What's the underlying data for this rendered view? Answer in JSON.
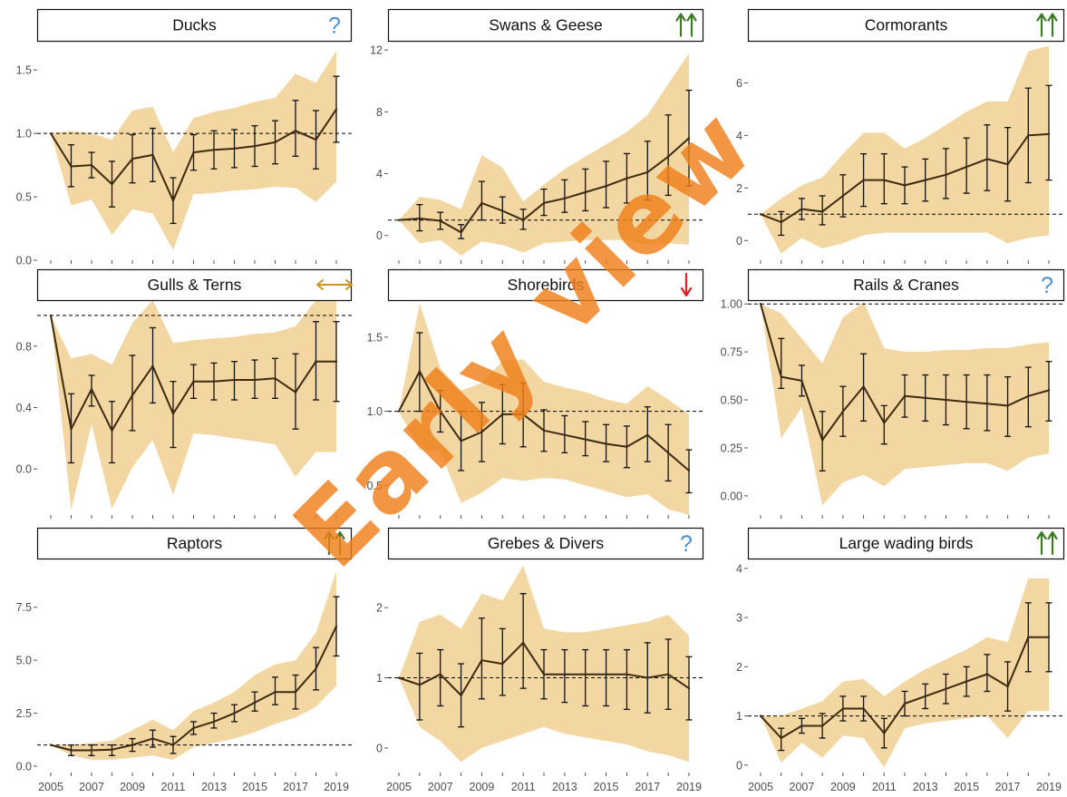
{
  "watermark_text": "Early view",
  "colors": {
    "band": "#f3d7a3",
    "line": "#3d2a10",
    "errorbar": "#111111",
    "refline": "#000000",
    "green_arrow": "#3c7a26",
    "red_arrow": "#e02020",
    "gold_arrow": "#c99624",
    "question": "#4a90d0",
    "axis_text": "#4d4d4d"
  },
  "x_tick_labels": [
    "2005",
    "2007",
    "2009",
    "2011",
    "2013",
    "2015",
    "2017",
    "2019"
  ],
  "chart_data": [
    {
      "type": "line",
      "title": "Ducks",
      "trend_icon": "question-mark",
      "x": [
        2005,
        2006,
        2007,
        2008,
        2009,
        2010,
        2011,
        2012,
        2013,
        2014,
        2015,
        2016,
        2017,
        2018,
        2019
      ],
      "y": [
        1.0,
        0.74,
        0.75,
        0.6,
        0.8,
        0.83,
        0.47,
        0.85,
        0.87,
        0.88,
        0.9,
        0.93,
        1.02,
        0.95,
        1.19
      ],
      "err_lo": [
        null,
        0.58,
        0.65,
        0.42,
        0.61,
        0.62,
        0.29,
        0.71,
        0.72,
        0.73,
        0.74,
        0.76,
        0.82,
        0.72,
        0.93
      ],
      "err_hi": [
        null,
        0.91,
        0.85,
        0.78,
        0.99,
        1.04,
        0.65,
        0.99,
        1.02,
        1.03,
        1.06,
        1.1,
        1.26,
        1.18,
        1.45
      ],
      "band_lo": [
        1.0,
        0.43,
        0.48,
        0.2,
        0.4,
        0.37,
        0.08,
        0.52,
        0.53,
        0.55,
        0.56,
        0.58,
        0.57,
        0.46,
        0.62
      ],
      "band_hi": [
        1.0,
        1.02,
        1.0,
        0.95,
        1.18,
        1.21,
        0.85,
        1.12,
        1.17,
        1.2,
        1.25,
        1.28,
        1.47,
        1.4,
        1.65
      ],
      "ref": 1.0,
      "ylim": [
        0,
        1.73
      ],
      "yticks": [
        0.0,
        0.5,
        1.0,
        1.5
      ],
      "ytick_labels": [
        "0.0",
        "0.5",
        "1.0",
        "1.5"
      ]
    },
    {
      "type": "line",
      "title": "Swans & Geese",
      "trend_icon": "double-up-arrow",
      "x": [
        2005,
        2006,
        2007,
        2008,
        2009,
        2010,
        2011,
        2012,
        2013,
        2014,
        2015,
        2016,
        2017,
        2018,
        2019
      ],
      "y": [
        1.0,
        1.1,
        0.95,
        0.2,
        2.1,
        1.6,
        1.0,
        2.1,
        2.4,
        2.8,
        3.2,
        3.7,
        4.1,
        5.1,
        6.3
      ],
      "err_lo": [
        null,
        0.3,
        0.4,
        -0.2,
        1.0,
        0.8,
        0.4,
        1.3,
        1.5,
        1.6,
        1.8,
        2.1,
        2.3,
        2.6,
        3.2
      ],
      "err_hi": [
        null,
        2.0,
        1.5,
        0.7,
        3.5,
        2.5,
        1.7,
        3.0,
        3.6,
        4.3,
        4.8,
        5.3,
        6.1,
        7.8,
        9.4
      ],
      "band_lo": [
        1.0,
        -0.5,
        -0.3,
        -1.3,
        -0.4,
        -0.6,
        -1.1,
        -0.5,
        -0.4,
        -0.3,
        -0.3,
        -0.3,
        -0.6,
        -0.5,
        -0.6
      ],
      "band_hi": [
        1.0,
        2.5,
        2.3,
        1.7,
        5.2,
        4.4,
        2.2,
        3.3,
        4.3,
        5.1,
        5.9,
        6.7,
        7.8,
        9.8,
        11.8
      ],
      "ref": 1.0,
      "ylim": [
        -1.6,
        12.6
      ],
      "yticks": [
        0,
        4,
        8,
        12
      ],
      "ytick_labels": [
        "0",
        "4",
        "8",
        "12"
      ]
    },
    {
      "type": "line",
      "title": "Cormorants",
      "trend_icon": "double-up-arrow",
      "x": [
        2005,
        2006,
        2007,
        2008,
        2009,
        2010,
        2011,
        2012,
        2013,
        2014,
        2015,
        2016,
        2017,
        2018,
        2019
      ],
      "y": [
        1.0,
        0.7,
        1.2,
        1.1,
        1.7,
        2.3,
        2.3,
        2.1,
        2.3,
        2.5,
        2.8,
        3.1,
        2.9,
        4.0,
        4.05
      ],
      "err_lo": [
        null,
        0.2,
        0.8,
        0.6,
        0.9,
        1.3,
        1.4,
        1.4,
        1.5,
        1.6,
        1.8,
        1.9,
        1.5,
        2.2,
        2.3
      ],
      "err_hi": [
        null,
        1.1,
        1.6,
        1.7,
        2.5,
        3.3,
        3.3,
        2.8,
        3.1,
        3.5,
        3.9,
        4.4,
        4.3,
        5.8,
        5.9
      ],
      "band_lo": [
        1.0,
        -0.5,
        0.1,
        -0.3,
        -0.1,
        0.2,
        0.3,
        0.3,
        0.3,
        0.3,
        0.3,
        0.3,
        -0.1,
        0.1,
        0.2
      ],
      "band_hi": [
        1.0,
        1.6,
        2.1,
        2.4,
        3.3,
        4.1,
        4.1,
        3.5,
        3.9,
        4.4,
        4.9,
        5.3,
        5.3,
        7.2,
        7.4
      ],
      "ref": 1.0,
      "ylim": [
        -0.75,
        7.6
      ],
      "yticks": [
        0,
        2,
        4,
        6
      ],
      "ytick_labels": [
        "0",
        "2",
        "4",
        "6"
      ]
    },
    {
      "type": "line",
      "title": "Gulls & Terns",
      "trend_icon": "left-right-arrow",
      "x": [
        2005,
        2006,
        2007,
        2008,
        2009,
        2010,
        2011,
        2012,
        2013,
        2014,
        2015,
        2016,
        2017,
        2018,
        2019
      ],
      "y": [
        1.0,
        0.26,
        0.52,
        0.25,
        0.48,
        0.67,
        0.36,
        0.57,
        0.57,
        0.58,
        0.58,
        0.59,
        0.5,
        0.7,
        0.7
      ],
      "err_lo": [
        null,
        0.04,
        0.41,
        0.04,
        0.25,
        0.43,
        0.14,
        0.46,
        0.45,
        0.45,
        0.46,
        0.46,
        0.26,
        0.45,
        0.44
      ],
      "err_hi": [
        null,
        0.49,
        0.61,
        0.44,
        0.74,
        0.92,
        0.57,
        0.68,
        0.69,
        0.7,
        0.71,
        0.72,
        0.75,
        0.96,
        0.96
      ],
      "band_lo": [
        1.0,
        -0.27,
        0.29,
        -0.26,
        0.01,
        0.19,
        -0.17,
        0.23,
        0.22,
        0.2,
        0.18,
        0.16,
        -0.05,
        0.11,
        0.11
      ],
      "band_hi": [
        1.0,
        0.72,
        0.75,
        0.68,
        0.95,
        1.1,
        0.82,
        0.84,
        0.85,
        0.86,
        0.88,
        0.89,
        0.93,
        1.1,
        1.1
      ],
      "ref": 1.0,
      "ylim": [
        -0.3,
        1.1
      ],
      "yticks": [
        0.0,
        0.4,
        0.8
      ],
      "ytick_labels": [
        "0.0",
        "0.4",
        "0.8"
      ]
    },
    {
      "type": "line",
      "title": "Shorebirds",
      "trend_icon": "down-arrow",
      "x": [
        2005,
        2006,
        2007,
        2008,
        2009,
        2010,
        2011,
        2012,
        2013,
        2014,
        2015,
        2016,
        2017,
        2018,
        2019
      ],
      "y": [
        1.0,
        1.27,
        1.0,
        0.8,
        0.86,
        0.98,
        0.98,
        0.87,
        0.84,
        0.81,
        0.78,
        0.76,
        0.84,
        0.72,
        0.6
      ],
      "err_lo": [
        null,
        1.0,
        0.86,
        0.6,
        0.66,
        0.78,
        0.76,
        0.73,
        0.72,
        0.7,
        0.66,
        0.62,
        0.66,
        0.53,
        0.45
      ],
      "err_hi": [
        null,
        1.53,
        1.14,
        1.0,
        1.06,
        1.18,
        1.19,
        1.01,
        0.97,
        0.93,
        0.91,
        0.9,
        1.03,
        0.91,
        0.74
      ],
      "band_lo": [
        1.0,
        0.74,
        0.73,
        0.38,
        0.45,
        0.55,
        0.53,
        0.55,
        0.54,
        0.5,
        0.46,
        0.42,
        0.44,
        0.34,
        0.3
      ],
      "band_hi": [
        1.0,
        1.73,
        1.29,
        1.14,
        1.19,
        1.34,
        1.35,
        1.2,
        1.16,
        1.13,
        1.08,
        1.05,
        1.17,
        1.08,
        0.98
      ],
      "ref": 1.0,
      "ylim": [
        0.3,
        1.75
      ],
      "yticks": [
        0.5,
        1.0,
        1.5
      ],
      "ytick_labels": [
        "0.5",
        "1.0",
        "1.5"
      ]
    },
    {
      "type": "line",
      "title": "Rails & Cranes",
      "trend_icon": "question-mark",
      "x": [
        2005,
        2006,
        2007,
        2008,
        2009,
        2010,
        2011,
        2012,
        2013,
        2014,
        2015,
        2016,
        2017,
        2018,
        2019
      ],
      "y": [
        1.0,
        0.62,
        0.6,
        0.29,
        0.44,
        0.57,
        0.38,
        0.52,
        0.51,
        0.5,
        0.49,
        0.48,
        0.47,
        0.52,
        0.55
      ],
      "err_lo": [
        null,
        0.56,
        0.52,
        0.13,
        0.31,
        0.39,
        0.27,
        0.41,
        0.39,
        0.37,
        0.35,
        0.34,
        0.31,
        0.36,
        0.39
      ],
      "err_hi": [
        null,
        0.82,
        0.68,
        0.44,
        0.57,
        0.74,
        0.47,
        0.63,
        0.63,
        0.63,
        0.63,
        0.63,
        0.62,
        0.67,
        0.7
      ],
      "band_lo": [
        1.0,
        0.3,
        0.46,
        -0.05,
        0.07,
        0.11,
        0.05,
        0.14,
        0.15,
        0.16,
        0.17,
        0.17,
        0.13,
        0.2,
        0.22
      ],
      "band_hi": [
        1.0,
        0.95,
        0.82,
        0.69,
        0.93,
        1.01,
        0.77,
        0.75,
        0.75,
        0.76,
        0.76,
        0.77,
        0.77,
        0.79,
        0.8
      ],
      "ref": 1.0,
      "ylim": [
        -0.1,
        1.02
      ],
      "yticks": [
        0.0,
        0.25,
        0.5,
        0.75,
        1.0
      ],
      "ytick_labels": [
        "0.00",
        "0.25",
        "0.50",
        "0.75",
        "1.00"
      ]
    },
    {
      "type": "line",
      "title": "Raptors",
      "trend_icon": "double-up-arrow",
      "x": [
        2005,
        2006,
        2007,
        2008,
        2009,
        2010,
        2011,
        2012,
        2013,
        2014,
        2015,
        2016,
        2017,
        2018,
        2019
      ],
      "y": [
        1.0,
        0.75,
        0.75,
        0.78,
        1.0,
        1.3,
        1.0,
        1.8,
        2.1,
        2.5,
        3.0,
        3.5,
        3.5,
        4.6,
        6.6
      ],
      "err_lo": [
        null,
        0.5,
        0.5,
        0.5,
        0.7,
        0.9,
        0.6,
        1.5,
        1.8,
        2.1,
        2.6,
        2.9,
        2.7,
        3.6,
        5.2
      ],
      "err_hi": [
        null,
        1.0,
        1.0,
        1.0,
        1.3,
        1.7,
        1.4,
        2.1,
        2.5,
        2.9,
        3.5,
        4.2,
        4.3,
        5.6,
        8.0
      ],
      "band_lo": [
        1.0,
        0.5,
        0.3,
        0.3,
        0.4,
        0.5,
        0.3,
        0.9,
        1.1,
        1.3,
        1.6,
        2.0,
        2.3,
        2.8,
        3.8
      ],
      "band_hi": [
        1.0,
        1.0,
        1.1,
        1.2,
        1.7,
        2.2,
        1.7,
        2.6,
        3.0,
        3.5,
        4.3,
        4.8,
        5.0,
        6.3,
        9.2
      ],
      "ref": 1.0,
      "ylim": [
        -0.3,
        9.8
      ],
      "yticks": [
        0.0,
        2.5,
        5.0,
        7.5
      ],
      "ytick_labels": [
        "0.0",
        "2.5",
        "5.0",
        "7.5"
      ]
    },
    {
      "type": "line",
      "title": "Grebes & Divers",
      "trend_icon": "question-mark",
      "x": [
        2005,
        2006,
        2007,
        2008,
        2009,
        2010,
        2011,
        2012,
        2013,
        2014,
        2015,
        2016,
        2017,
        2018,
        2019
      ],
      "y": [
        1.0,
        0.9,
        1.05,
        0.75,
        1.25,
        1.2,
        1.5,
        1.05,
        1.05,
        1.05,
        1.05,
        1.05,
        1.0,
        1.05,
        0.85
      ],
      "err_lo": [
        null,
        0.4,
        0.6,
        0.3,
        0.7,
        0.75,
        0.85,
        0.7,
        0.65,
        0.6,
        0.6,
        0.55,
        0.5,
        0.55,
        0.4
      ],
      "err_hi": [
        null,
        1.35,
        1.4,
        1.2,
        1.85,
        1.7,
        2.2,
        1.4,
        1.4,
        1.4,
        1.4,
        1.4,
        1.5,
        1.55,
        1.3
      ],
      "band_lo": [
        1.0,
        0.3,
        0.1,
        -0.2,
        0.0,
        0.1,
        0.2,
        0.3,
        0.2,
        0.15,
        0.1,
        0.05,
        -0.05,
        -0.1,
        -0.2
      ],
      "band_hi": [
        1.0,
        1.8,
        1.9,
        1.7,
        2.2,
        2.1,
        2.6,
        1.7,
        1.65,
        1.65,
        1.7,
        1.75,
        1.8,
        1.9,
        1.6
      ],
      "ref": 1.0,
      "ylim": [
        -0.35,
        2.7
      ],
      "yticks": [
        0,
        1,
        2
      ],
      "ytick_labels": [
        "0",
        "1",
        "2"
      ]
    },
    {
      "type": "line",
      "title": "Large wading birds",
      "trend_icon": "double-up-arrow",
      "x": [
        2005,
        2006,
        2007,
        2008,
        2009,
        2010,
        2011,
        2012,
        2013,
        2014,
        2015,
        2016,
        2017,
        2018,
        2019
      ],
      "y": [
        1.0,
        0.55,
        0.8,
        0.8,
        1.15,
        1.15,
        0.65,
        1.25,
        1.4,
        1.55,
        1.7,
        1.85,
        1.6,
        2.6,
        2.6
      ],
      "err_lo": [
        null,
        0.3,
        0.65,
        0.55,
        0.9,
        0.9,
        0.35,
        1.0,
        1.15,
        1.25,
        1.4,
        1.5,
        1.1,
        1.9,
        1.9
      ],
      "err_hi": [
        null,
        0.75,
        0.95,
        1.05,
        1.4,
        1.4,
        0.95,
        1.5,
        1.65,
        1.85,
        2.0,
        2.25,
        2.1,
        3.3,
        3.3
      ],
      "band_lo": [
        1.0,
        0.05,
        0.45,
        0.15,
        0.6,
        0.55,
        -0.05,
        0.75,
        0.85,
        0.9,
        0.95,
        1.0,
        0.55,
        1.1,
        1.1
      ],
      "band_hi": [
        1.0,
        1.0,
        1.15,
        1.3,
        1.7,
        1.75,
        1.4,
        1.7,
        1.95,
        2.15,
        2.35,
        2.6,
        2.5,
        3.8,
        3.8
      ],
      "ref": 1.0,
      "ylim": [
        -0.15,
        4.2
      ],
      "yticks": [
        0,
        1,
        2,
        3,
        4
      ],
      "ytick_labels": [
        "0",
        "1",
        "2",
        "3",
        "4"
      ]
    }
  ]
}
